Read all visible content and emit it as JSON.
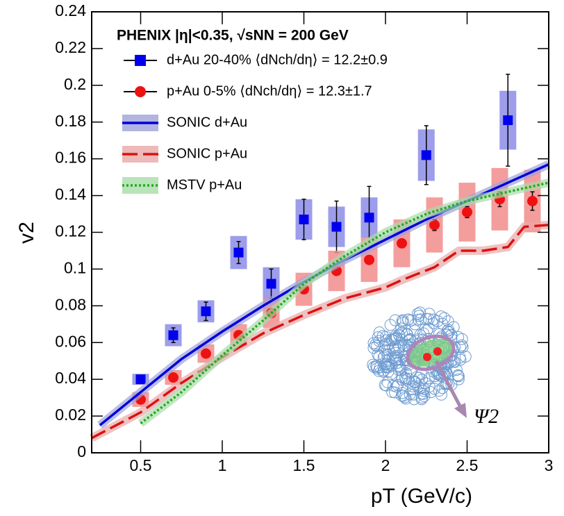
{
  "chart_data": {
    "type": "scatter",
    "title": "PHENIX |η|<0.35, √sNN = 200 GeV",
    "x_label": "pT (GeV/c)",
    "y_label": "v2",
    "annotation": "Ψ2",
    "xlim": [
      0.2,
      3
    ],
    "ylim": [
      0,
      0.24
    ],
    "xticks": [
      0.5,
      1,
      1.5,
      2,
      2.5,
      3
    ],
    "yticks": [
      0,
      0.02,
      0.04,
      0.06,
      0.08,
      0.1,
      0.12,
      0.14,
      0.16,
      0.18,
      0.2,
      0.22,
      0.24
    ],
    "series": [
      {
        "name": "d+Au 20-40% ⟨dNch/dη⟩ = 12.2±0.9",
        "type": "scatter",
        "marker": "square",
        "color": "#0000ee",
        "sys_color": "#8c8ce8",
        "x": [
          0.5,
          0.7,
          0.9,
          1.1,
          1.3,
          1.5,
          1.7,
          1.9,
          2.25,
          2.75
        ],
        "values": [
          0.04,
          0.064,
          0.077,
          0.109,
          0.092,
          0.127,
          0.123,
          0.128,
          0.162,
          0.181
        ],
        "errors": [
          0.001,
          0.004,
          0.005,
          0.006,
          0.008,
          0.011,
          0.014,
          0.017,
          0.016,
          0.025
        ],
        "sys_errors": [
          0.003,
          0.006,
          0.006,
          0.009,
          0.009,
          0.011,
          0.011,
          0.011,
          0.014,
          0.016
        ]
      },
      {
        "name": "p+Au 0-5% ⟨dNch/dη⟩ = 12.3±1.7",
        "type": "scatter",
        "marker": "circle",
        "color": "#ee1111",
        "sys_color": "#f28c8c",
        "x": [
          0.5,
          0.7,
          0.9,
          1.1,
          1.3,
          1.5,
          1.7,
          1.9,
          2.1,
          2.3,
          2.5,
          2.7,
          2.9
        ],
        "values": [
          0.029,
          0.041,
          0.054,
          0.064,
          0.076,
          0.089,
          0.099,
          0.105,
          0.114,
          0.124,
          0.131,
          0.138,
          0.137
        ],
        "errors": [
          0.001,
          0.001,
          0.001,
          0.001,
          0.001,
          0.001,
          0.002,
          0.002,
          0.002,
          0.003,
          0.003,
          0.004,
          0.005
        ],
        "sys_errors": [
          0.004,
          0.004,
          0.005,
          0.006,
          0.008,
          0.009,
          0.011,
          0.012,
          0.013,
          0.015,
          0.016,
          0.017,
          0.017
        ]
      },
      {
        "name": "SONIC d+Au",
        "type": "line",
        "dash": "solid",
        "color": "#0000dd",
        "band_color": "#9fa3d8",
        "x": [
          0.25,
          0.5,
          0.75,
          1.0,
          1.25,
          1.5,
          1.75,
          2.0,
          2.25,
          2.5,
          2.75,
          3.0
        ],
        "values": [
          0.015,
          0.033,
          0.051,
          0.066,
          0.08,
          0.093,
          0.105,
          0.116,
          0.127,
          0.137,
          0.147,
          0.157
        ]
      },
      {
        "name": "SONIC p+Au",
        "type": "line",
        "dash": "dashed",
        "color": "#dd1111",
        "band_color": "#e8a8a8",
        "x": [
          0.2,
          0.5,
          0.75,
          1.0,
          1.25,
          1.5,
          1.75,
          2.0,
          2.1,
          2.3,
          2.45,
          2.6,
          2.75,
          2.85,
          3.0
        ],
        "values": [
          0.008,
          0.022,
          0.038,
          0.052,
          0.065,
          0.075,
          0.084,
          0.09,
          0.094,
          0.101,
          0.11,
          0.11,
          0.112,
          0.123,
          0.124
        ]
      },
      {
        "name": "MSTV p+Au",
        "type": "line",
        "dash": "dotted",
        "color": "#22aa22",
        "band_color": "#a8dca8",
        "x": [
          0.5,
          0.75,
          1.0,
          1.25,
          1.5,
          1.75,
          2.0,
          2.25,
          2.5,
          2.75,
          3.0
        ],
        "values": [
          0.016,
          0.033,
          0.053,
          0.072,
          0.092,
          0.107,
          0.12,
          0.13,
          0.137,
          0.142,
          0.147
        ]
      }
    ]
  }
}
